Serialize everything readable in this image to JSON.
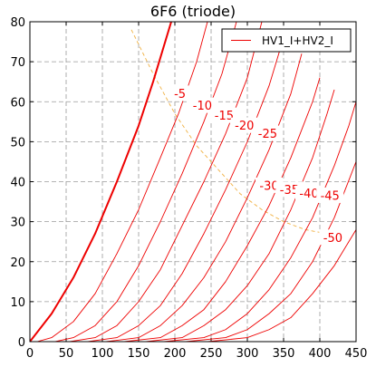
{
  "chart_data": {
    "type": "line",
    "title": "6F6 (triode)",
    "xlim": [
      0,
      450
    ],
    "ylim": [
      0,
      80
    ],
    "x_ticks": [
      "0",
      "50",
      "100",
      "150",
      "200",
      "250",
      "300",
      "350",
      "400",
      "450"
    ],
    "y_ticks": [
      "0",
      "10",
      "20",
      "30",
      "40",
      "50",
      "60",
      "70",
      "80"
    ],
    "grid": true,
    "legend": {
      "position": "top-right",
      "entries": [
        {
          "label": "HV1_I+HV2_I",
          "color": "#ee0000"
        }
      ]
    },
    "series_color": "#ee0000",
    "load_line_color": "#f0b040",
    "series": [
      {
        "grid_voltage": "0",
        "points": [
          [
            0,
            0
          ],
          [
            30,
            7
          ],
          [
            60,
            16
          ],
          [
            90,
            27
          ],
          [
            120,
            40
          ],
          [
            150,
            54
          ],
          [
            170,
            65
          ],
          [
            185,
            74
          ],
          [
            195,
            80
          ]
        ]
      },
      {
        "grid_voltage": "-5",
        "points": [
          [
            10,
            0
          ],
          [
            30,
            1
          ],
          [
            60,
            5
          ],
          [
            90,
            12
          ],
          [
            120,
            22
          ],
          [
            150,
            33
          ],
          [
            180,
            46
          ],
          [
            205,
            57
          ],
          [
            230,
            70
          ],
          [
            245,
            80
          ]
        ]
      },
      {
        "grid_voltage": "-10",
        "points": [
          [
            35,
            0
          ],
          [
            60,
            1
          ],
          [
            90,
            4
          ],
          [
            120,
            10
          ],
          [
            150,
            19
          ],
          [
            180,
            30
          ],
          [
            210,
            42
          ],
          [
            240,
            55
          ],
          [
            265,
            67
          ],
          [
            285,
            80
          ]
        ]
      },
      {
        "grid_voltage": "-15",
        "points": [
          [
            55,
            0
          ],
          [
            90,
            1
          ],
          [
            120,
            4
          ],
          [
            150,
            10
          ],
          [
            180,
            18
          ],
          [
            210,
            29
          ],
          [
            240,
            40
          ],
          [
            270,
            52
          ],
          [
            300,
            66
          ],
          [
            320,
            80
          ]
        ]
      },
      {
        "grid_voltage": "-20",
        "points": [
          [
            80,
            0
          ],
          [
            120,
            1
          ],
          [
            150,
            4
          ],
          [
            180,
            9
          ],
          [
            210,
            17
          ],
          [
            240,
            27
          ],
          [
            270,
            38
          ],
          [
            300,
            50
          ],
          [
            330,
            64
          ],
          [
            350,
            76
          ]
        ]
      },
      {
        "grid_voltage": "-25",
        "points": [
          [
            105,
            0
          ],
          [
            150,
            1
          ],
          [
            180,
            4
          ],
          [
            210,
            9
          ],
          [
            240,
            16
          ],
          [
            270,
            25
          ],
          [
            300,
            36
          ],
          [
            330,
            48
          ],
          [
            360,
            62
          ],
          [
            375,
            72
          ]
        ]
      },
      {
        "grid_voltage": "-30",
        "points": [
          [
            130,
            0
          ],
          [
            180,
            1
          ],
          [
            210,
            4
          ],
          [
            240,
            8
          ],
          [
            270,
            15
          ],
          [
            300,
            24
          ],
          [
            330,
            34
          ],
          [
            360,
            46
          ],
          [
            390,
            60
          ],
          [
            400,
            66
          ]
        ]
      },
      {
        "grid_voltage": "-35",
        "points": [
          [
            160,
            0
          ],
          [
            210,
            1
          ],
          [
            240,
            4
          ],
          [
            270,
            8
          ],
          [
            300,
            14
          ],
          [
            330,
            22
          ],
          [
            360,
            33
          ],
          [
            390,
            46
          ],
          [
            410,
            57
          ],
          [
            420,
            63
          ]
        ]
      },
      {
        "grid_voltage": "-40",
        "points": [
          [
            185,
            0
          ],
          [
            240,
            1
          ],
          [
            270,
            3
          ],
          [
            300,
            7
          ],
          [
            330,
            13
          ],
          [
            360,
            21
          ],
          [
            390,
            31
          ],
          [
            420,
            44
          ],
          [
            440,
            54
          ],
          [
            450,
            60
          ]
        ]
      },
      {
        "grid_voltage": "-45",
        "points": [
          [
            215,
            0
          ],
          [
            270,
            1
          ],
          [
            300,
            3
          ],
          [
            330,
            7
          ],
          [
            360,
            12
          ],
          [
            390,
            20
          ],
          [
            420,
            31
          ],
          [
            450,
            45
          ]
        ]
      },
      {
        "grid_voltage": "-50",
        "points": [
          [
            245,
            0
          ],
          [
            300,
            1
          ],
          [
            330,
            3
          ],
          [
            360,
            6
          ],
          [
            390,
            12
          ],
          [
            420,
            19
          ],
          [
            450,
            28
          ]
        ]
      }
    ],
    "curve_labels": [
      {
        "text": "-5",
        "x": 207,
        "y": 62
      },
      {
        "text": "-10",
        "x": 238,
        "y": 59
      },
      {
        "text": "-15",
        "x": 268,
        "y": 56.5
      },
      {
        "text": "-20",
        "x": 296,
        "y": 54
      },
      {
        "text": "-25",
        "x": 328,
        "y": 52
      },
      {
        "text": "-30",
        "x": 330,
        "y": 39
      },
      {
        "text": "-35",
        "x": 358,
        "y": 38
      },
      {
        "text": "-40",
        "x": 385,
        "y": 37
      },
      {
        "text": "-45",
        "x": 414,
        "y": 36.5
      },
      {
        "text": "-50",
        "x": 418,
        "y": 26
      }
    ],
    "load_line": [
      [
        140,
        78
      ],
      [
        170,
        67
      ],
      [
        200,
        57
      ],
      [
        230,
        49
      ],
      [
        260,
        43
      ],
      [
        290,
        37
      ],
      [
        320,
        33
      ],
      [
        350,
        30
      ],
      [
        380,
        28
      ],
      [
        410,
        27
      ],
      [
        440,
        26
      ]
    ]
  }
}
